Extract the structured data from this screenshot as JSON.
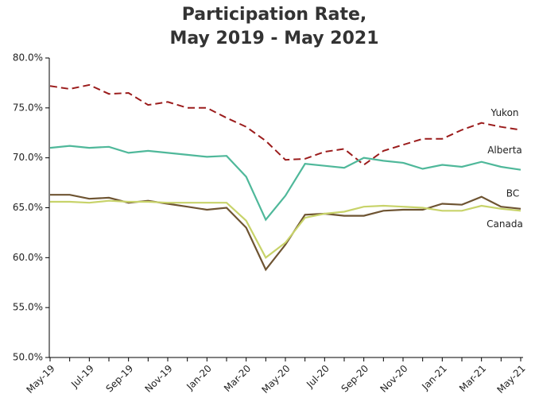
{
  "chart_data": {
    "type": "line",
    "title": [
      "Participation Rate,",
      "May 2019 - May 2021"
    ],
    "categories": [
      "May-19",
      null,
      "Jul-19",
      null,
      "Sep-19",
      null,
      "Nov-19",
      null,
      "Jan-20",
      null,
      "Mar-20",
      null,
      "May-20",
      null,
      "Jul-20",
      null,
      "Sep-20",
      null,
      "Nov-20",
      null,
      "Jan-21",
      null,
      "Mar-21",
      null,
      "May-21"
    ],
    "series": [
      {
        "name": "Yukon",
        "color": "#9b1c1c",
        "dashed": true,
        "values": [
          77.2,
          76.9,
          77.3,
          76.4,
          76.5,
          75.3,
          75.6,
          75.0,
          75.0,
          74.0,
          73.1,
          71.7,
          69.8,
          69.9,
          70.6,
          70.9,
          69.3,
          70.7,
          71.3,
          71.9,
          71.9,
          72.8,
          73.5,
          73.1,
          72.8
        ]
      },
      {
        "name": "Alberta",
        "color": "#4fb89a",
        "dashed": false,
        "values": [
          71.0,
          71.2,
          71.0,
          71.1,
          70.5,
          70.7,
          70.5,
          70.3,
          70.1,
          70.2,
          68.1,
          63.8,
          66.2,
          69.4,
          69.2,
          69.0,
          70.0,
          69.7,
          69.5,
          68.9,
          69.3,
          69.1,
          69.6,
          69.1,
          68.8
        ]
      },
      {
        "name": "BC",
        "color": "#6e5432",
        "dashed": false,
        "values": [
          66.3,
          66.3,
          65.9,
          66.0,
          65.5,
          65.7,
          65.4,
          65.1,
          64.8,
          65.0,
          63.0,
          58.8,
          61.3,
          64.3,
          64.4,
          64.2,
          64.2,
          64.7,
          64.8,
          64.8,
          65.4,
          65.3,
          66.1,
          65.1,
          64.9
        ]
      },
      {
        "name": "Canada",
        "color": "#c8d36a",
        "dashed": false,
        "values": [
          65.6,
          65.6,
          65.5,
          65.7,
          65.6,
          65.6,
          65.5,
          65.5,
          65.5,
          65.5,
          63.7,
          60.0,
          61.5,
          64.0,
          64.4,
          64.6,
          65.1,
          65.2,
          65.1,
          65.0,
          64.7,
          64.7,
          65.2,
          64.9,
          64.7
        ]
      }
    ],
    "ylim": [
      50,
      80
    ],
    "yticks": [
      {
        "value": 50,
        "label": "50.0%"
      },
      {
        "value": 55,
        "label": "55.0%"
      },
      {
        "value": 60,
        "label": "60.0%"
      },
      {
        "value": 65,
        "label": "65.0%"
      },
      {
        "value": 70,
        "label": "70.0%"
      },
      {
        "value": 75,
        "label": "75.0%"
      },
      {
        "value": 80,
        "label": "80.0%"
      }
    ],
    "grid": false
  }
}
